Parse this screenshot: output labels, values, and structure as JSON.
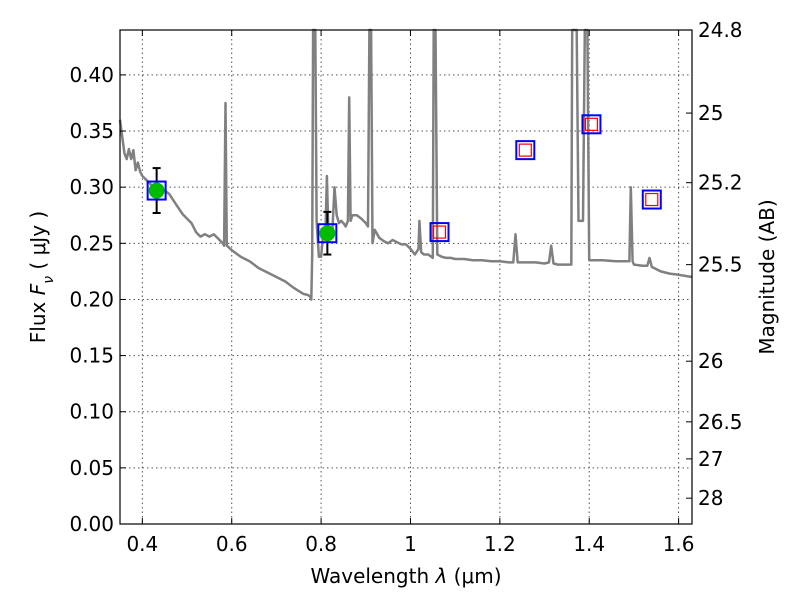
{
  "chart_data": {
    "type": "line",
    "xlabel_prefix": "Wavelength ",
    "xlabel_symbol": "λ",
    "xlabel_unit": " (μm)",
    "ylabel_prefix": "Flux ",
    "ylabel_symbol": "F",
    "ylabel_sub": "ν",
    "ylabel_unit": " ( μJy )",
    "ylabel_right": "Magnitude (AB)",
    "xlim": [
      0.35,
      1.63
    ],
    "ylim": [
      0.0,
      0.44
    ],
    "grid": true,
    "x_ticks": [
      0.4,
      0.6,
      0.8,
      1.0,
      1.2,
      1.4,
      1.6
    ],
    "x_tick_labels": [
      "0.4",
      "0.6",
      "0.8",
      "1",
      "1.2",
      "1.4",
      "1.6"
    ],
    "y_ticks": [
      0.0,
      0.05,
      0.1,
      0.15,
      0.2,
      0.25,
      0.3,
      0.35,
      0.4
    ],
    "y_tick_labels": [
      "0.00",
      "0.05",
      "0.10",
      "0.15",
      "0.20",
      "0.25",
      "0.30",
      "0.35",
      "0.40"
    ],
    "right_ticks": [
      {
        "label": "24.8",
        "flux": 0.44
      },
      {
        "label": "25",
        "flux": 0.366
      },
      {
        "label": "25.2",
        "flux": 0.304
      },
      {
        "label": "25.5",
        "flux": 0.231
      },
      {
        "label": "26",
        "flux": 0.145
      },
      {
        "label": "26.5",
        "flux": 0.091
      },
      {
        "label": "27",
        "flux": 0.058
      },
      {
        "label": "28",
        "flux": 0.023
      }
    ],
    "spectrum": {
      "color": "#808080",
      "points": [
        [
          0.35,
          0.36
        ],
        [
          0.355,
          0.345
        ],
        [
          0.36,
          0.33
        ],
        [
          0.365,
          0.325
        ],
        [
          0.37,
          0.334
        ],
        [
          0.375,
          0.325
        ],
        [
          0.38,
          0.333
        ],
        [
          0.385,
          0.315
        ],
        [
          0.39,
          0.322
        ],
        [
          0.395,
          0.314
        ],
        [
          0.4,
          0.31
        ],
        [
          0.41,
          0.306
        ],
        [
          0.42,
          0.302
        ],
        [
          0.43,
          0.3
        ],
        [
          0.44,
          0.299
        ],
        [
          0.45,
          0.297
        ],
        [
          0.46,
          0.294
        ],
        [
          0.47,
          0.288
        ],
        [
          0.48,
          0.282
        ],
        [
          0.49,
          0.276
        ],
        [
          0.5,
          0.272
        ],
        [
          0.51,
          0.268
        ],
        [
          0.52,
          0.26
        ],
        [
          0.53,
          0.256
        ],
        [
          0.54,
          0.258
        ],
        [
          0.55,
          0.256
        ],
        [
          0.56,
          0.258
        ],
        [
          0.57,
          0.254
        ],
        [
          0.58,
          0.25
        ],
        [
          0.583,
          0.248
        ],
        [
          0.586,
          0.375
        ],
        [
          0.589,
          0.248
        ],
        [
          0.6,
          0.244
        ],
        [
          0.62,
          0.238
        ],
        [
          0.64,
          0.234
        ],
        [
          0.66,
          0.228
        ],
        [
          0.68,
          0.224
        ],
        [
          0.7,
          0.22
        ],
        [
          0.72,
          0.216
        ],
        [
          0.74,
          0.21
        ],
        [
          0.76,
          0.205
        ],
        [
          0.77,
          0.204
        ],
        [
          0.775,
          0.203
        ],
        [
          0.778,
          0.2
        ],
        [
          0.78,
          0.24
        ],
        [
          0.782,
          0.44
        ],
        [
          0.787,
          0.44
        ],
        [
          0.79,
          0.27
        ],
        [
          0.795,
          0.238
        ],
        [
          0.8,
          0.238
        ],
        [
          0.805,
          0.26
        ],
        [
          0.81,
          0.265
        ],
        [
          0.813,
          0.31
        ],
        [
          0.816,
          0.265
        ],
        [
          0.82,
          0.255
        ],
        [
          0.825,
          0.26
        ],
        [
          0.83,
          0.3
        ],
        [
          0.835,
          0.275
        ],
        [
          0.84,
          0.268
        ],
        [
          0.845,
          0.27
        ],
        [
          0.85,
          0.268
        ],
        [
          0.855,
          0.265
        ],
        [
          0.86,
          0.27
        ],
        [
          0.863,
          0.38
        ],
        [
          0.866,
          0.27
        ],
        [
          0.87,
          0.275
        ],
        [
          0.88,
          0.275
        ],
        [
          0.89,
          0.272
        ],
        [
          0.9,
          0.268
        ],
        [
          0.905,
          0.265
        ],
        [
          0.908,
          0.44
        ],
        [
          0.912,
          0.44
        ],
        [
          0.915,
          0.25
        ],
        [
          0.92,
          0.262
        ],
        [
          0.93,
          0.255
        ],
        [
          0.94,
          0.252
        ],
        [
          0.95,
          0.25
        ],
        [
          0.96,
          0.253
        ],
        [
          0.97,
          0.251
        ],
        [
          0.98,
          0.249
        ],
        [
          0.99,
          0.249
        ],
        [
          1.0,
          0.245
        ],
        [
          1.01,
          0.24
        ],
        [
          1.018,
          0.245
        ],
        [
          1.02,
          0.27
        ],
        [
          1.024,
          0.242
        ],
        [
          1.03,
          0.24
        ],
        [
          1.04,
          0.24
        ],
        [
          1.05,
          0.237
        ],
        [
          1.052,
          0.44
        ],
        [
          1.056,
          0.44
        ],
        [
          1.06,
          0.24
        ],
        [
          1.07,
          0.238
        ],
        [
          1.08,
          0.237
        ],
        [
          1.09,
          0.237
        ],
        [
          1.1,
          0.236
        ],
        [
          1.12,
          0.236
        ],
        [
          1.14,
          0.235
        ],
        [
          1.16,
          0.235
        ],
        [
          1.18,
          0.234
        ],
        [
          1.2,
          0.234
        ],
        [
          1.22,
          0.233
        ],
        [
          1.23,
          0.233
        ],
        [
          1.235,
          0.258
        ],
        [
          1.24,
          0.233
        ],
        [
          1.26,
          0.233
        ],
        [
          1.28,
          0.233
        ],
        [
          1.3,
          0.232
        ],
        [
          1.31,
          0.233
        ],
        [
          1.315,
          0.248
        ],
        [
          1.32,
          0.232
        ],
        [
          1.33,
          0.231
        ],
        [
          1.35,
          0.231
        ],
        [
          1.36,
          0.231
        ],
        [
          1.362,
          0.44
        ],
        [
          1.372,
          0.44
        ],
        [
          1.376,
          0.27
        ],
        [
          1.38,
          0.27
        ],
        [
          1.386,
          0.27
        ],
        [
          1.39,
          0.44
        ],
        [
          1.396,
          0.44
        ],
        [
          1.4,
          0.235
        ],
        [
          1.43,
          0.235
        ],
        [
          1.46,
          0.234
        ],
        [
          1.48,
          0.234
        ],
        [
          1.49,
          0.234
        ],
        [
          1.493,
          0.3
        ],
        [
          1.497,
          0.234
        ],
        [
          1.5,
          0.231
        ],
        [
          1.52,
          0.23
        ],
        [
          1.53,
          0.23
        ],
        [
          1.535,
          0.237
        ],
        [
          1.54,
          0.229
        ],
        [
          1.56,
          0.225
        ],
        [
          1.58,
          0.223
        ],
        [
          1.6,
          0.222
        ],
        [
          1.63,
          0.22
        ]
      ]
    },
    "photometry": [
      {
        "x": 0.432,
        "y": 0.297,
        "measured": true,
        "err": 0.02
      },
      {
        "x": 0.814,
        "y": 0.259,
        "measured": true,
        "err": 0.019
      },
      {
        "x": 1.065,
        "y": 0.26,
        "measured": false,
        "err": null
      },
      {
        "x": 1.257,
        "y": 0.333,
        "measured": false,
        "err": null
      },
      {
        "x": 1.405,
        "y": 0.356,
        "measured": false,
        "err": null
      },
      {
        "x": 1.54,
        "y": 0.289,
        "measured": false,
        "err": null
      }
    ],
    "colors": {
      "measured_fill": "#00bb00",
      "box_outline": "#0000ff",
      "synth_outline": "#ff0000",
      "error_bar": "#000000",
      "grid": "#555555"
    }
  }
}
